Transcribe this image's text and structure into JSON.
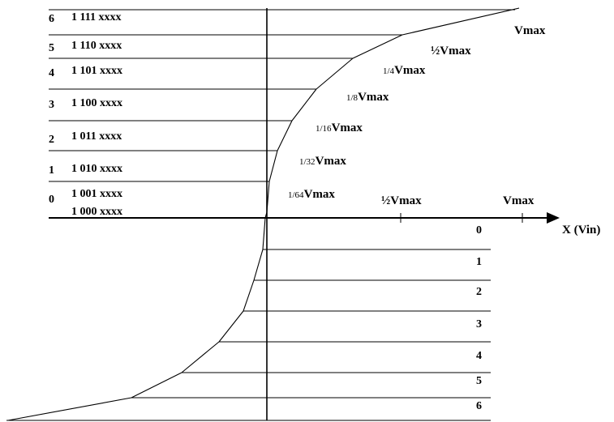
{
  "upper_rows": [
    {
      "segment": "6",
      "code": "1 111 xxxx"
    },
    {
      "segment": "5",
      "code": "1 110 xxxx"
    },
    {
      "segment": "4",
      "code": "1 101 xxxx"
    },
    {
      "segment": "3",
      "code": "1 100 xxxx"
    },
    {
      "segment": "2",
      "code": "1 011 xxxx"
    },
    {
      "segment": "1",
      "code": "1 010 xxxx"
    },
    {
      "segment": "0",
      "code": "1 001 xxxx"
    }
  ],
  "extra_code": "1 000 xxxx",
  "curve_labels": [
    {
      "text": "Vmax"
    },
    {
      "text": "½Vmax"
    },
    {
      "frac": "1/4",
      "text": "Vmax"
    },
    {
      "frac": "1/8",
      "text": "Vmax"
    },
    {
      "frac": "1/16",
      "text": "Vmax"
    },
    {
      "frac": "1/32",
      "text": "Vmax"
    },
    {
      "frac": "1/64",
      "text": "Vmax"
    }
  ],
  "axis": {
    "half_label": "½Vmax",
    "max_label": "Vmax",
    "x_label": "X (Vin)"
  },
  "lower_segments": [
    "0",
    "1",
    "2",
    "3",
    "4",
    "5",
    "6"
  ]
}
